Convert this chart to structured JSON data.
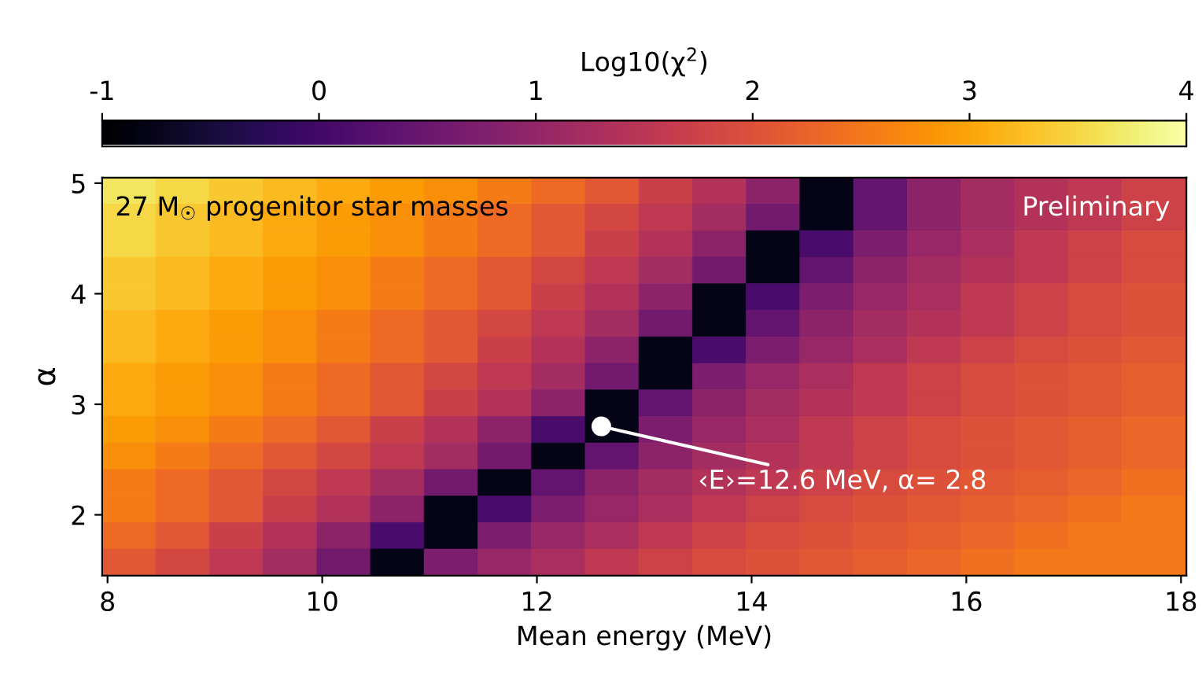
{
  "chart_data": {
    "type": "heatmap",
    "xlabel": "Mean energy (MeV)",
    "ylabel": "α",
    "clabel": "Log10(χ$^{2}$)",
    "x": [
      8.2,
      8.7,
      9.2,
      9.7,
      10.2,
      10.7,
      11.2,
      11.7,
      12.2,
      12.7,
      13.2,
      13.7,
      14.2,
      14.7,
      15.2,
      15.7,
      16.2,
      16.7,
      17.2,
      17.7
    ],
    "y": [
      4.93,
      4.69,
      4.45,
      4.21,
      3.97,
      3.73,
      3.49,
      3.25,
      3.01,
      2.77,
      2.53,
      2.29,
      2.05,
      1.81,
      1.57
    ],
    "cells": [
      [
        3.65,
        3.5,
        3.35,
        3.2,
        3.05,
        2.9,
        2.75,
        2.55,
        2.35,
        2.1,
        1.7,
        1.4,
        0.9,
        -0.8,
        0.4,
        0.9,
        1.2,
        1.4,
        1.55,
        1.75
      ],
      [
        3.5,
        3.35,
        3.2,
        3.05,
        2.9,
        2.75,
        2.55,
        2.35,
        2.1,
        1.85,
        1.55,
        1.2,
        0.6,
        -0.8,
        0.4,
        0.9,
        1.2,
        1.4,
        1.55,
        1.75
      ],
      [
        3.5,
        3.35,
        3.2,
        3.05,
        2.9,
        2.75,
        2.55,
        2.35,
        2.1,
        1.7,
        1.4,
        0.9,
        -0.8,
        0.1,
        0.7,
        1.05,
        1.3,
        1.55,
        1.75,
        1.9
      ],
      [
        3.35,
        3.2,
        3.05,
        2.9,
        2.75,
        2.55,
        2.35,
        2.1,
        1.85,
        1.55,
        1.2,
        0.6,
        -0.8,
        0.4,
        0.9,
        1.2,
        1.4,
        1.55,
        1.75,
        1.9
      ],
      [
        3.35,
        3.2,
        3.05,
        2.9,
        2.75,
        2.55,
        2.35,
        2.1,
        1.7,
        1.4,
        0.9,
        -0.8,
        0.1,
        0.7,
        1.05,
        1.3,
        1.55,
        1.75,
        1.9,
        2.0
      ],
      [
        3.2,
        3.05,
        2.9,
        2.75,
        2.55,
        2.35,
        2.1,
        1.85,
        1.55,
        1.2,
        0.6,
        -0.8,
        0.4,
        0.9,
        1.2,
        1.4,
        1.55,
        1.75,
        1.9,
        2.0
      ],
      [
        3.2,
        3.05,
        2.9,
        2.75,
        2.55,
        2.35,
        2.1,
        1.7,
        1.4,
        0.9,
        -0.8,
        0.1,
        0.7,
        1.05,
        1.3,
        1.55,
        1.75,
        1.9,
        2.0,
        2.1
      ],
      [
        3.05,
        2.9,
        2.75,
        2.55,
        2.35,
        2.1,
        1.85,
        1.55,
        1.2,
        0.6,
        -0.8,
        0.7,
        1.05,
        1.3,
        1.55,
        1.75,
        1.9,
        2.0,
        2.1,
        2.2
      ],
      [
        3.05,
        2.9,
        2.75,
        2.55,
        2.35,
        2.1,
        1.7,
        1.4,
        0.9,
        -0.8,
        0.4,
        0.9,
        1.2,
        1.4,
        1.55,
        1.75,
        1.9,
        2.0,
        2.1,
        2.2
      ],
      [
        2.9,
        2.75,
        2.55,
        2.35,
        2.1,
        1.7,
        1.4,
        0.9,
        0.1,
        -0.8,
        0.7,
        1.05,
        1.3,
        1.55,
        1.75,
        1.9,
        2.0,
        2.1,
        2.2,
        2.3
      ],
      [
        2.75,
        2.55,
        2.35,
        2.1,
        1.85,
        1.55,
        1.2,
        0.6,
        -0.8,
        0.4,
        0.9,
        1.2,
        1.4,
        1.55,
        1.75,
        1.9,
        2.0,
        2.1,
        2.2,
        2.3
      ],
      [
        2.55,
        2.35,
        2.1,
        1.85,
        1.55,
        1.2,
        0.6,
        -0.8,
        0.4,
        0.9,
        1.2,
        1.4,
        1.55,
        1.75,
        1.9,
        2.0,
        2.1,
        2.2,
        2.3,
        2.4
      ],
      [
        2.55,
        2.35,
        2.1,
        1.7,
        1.4,
        0.9,
        -0.8,
        0.1,
        0.7,
        1.05,
        1.3,
        1.55,
        1.75,
        1.9,
        2.0,
        2.1,
        2.2,
        2.3,
        2.4,
        2.5
      ],
      [
        2.35,
        2.1,
        1.7,
        1.4,
        0.9,
        0.1,
        -0.8,
        0.7,
        1.05,
        1.3,
        1.55,
        1.75,
        1.9,
        2.0,
        2.1,
        2.2,
        2.3,
        2.4,
        2.5,
        2.5
      ],
      [
        2.1,
        1.85,
        1.55,
        1.2,
        0.6,
        -0.8,
        0.7,
        1.05,
        1.3,
        1.55,
        1.75,
        1.9,
        2.0,
        2.1,
        2.2,
        2.3,
        2.4,
        2.5,
        2.5,
        2.5
      ]
    ],
    "clim": [
      -1,
      4
    ],
    "cticks": [
      -1,
      0,
      1,
      2,
      3,
      4
    ],
    "xlim": [
      7.95,
      18.05
    ],
    "ylim": [
      1.45,
      5.05
    ],
    "xticks": [
      8,
      10,
      12,
      14,
      16,
      18
    ],
    "yticks": [
      2,
      3,
      4,
      5
    ],
    "annotations": [
      "27 M$_{☉}$ progenitor star masses",
      "Preliminary",
      {
        "text": "‹E›=12.6 MeV, α= 2.8",
        "x": 12.6,
        "y": 2.8
      }
    ]
  }
}
